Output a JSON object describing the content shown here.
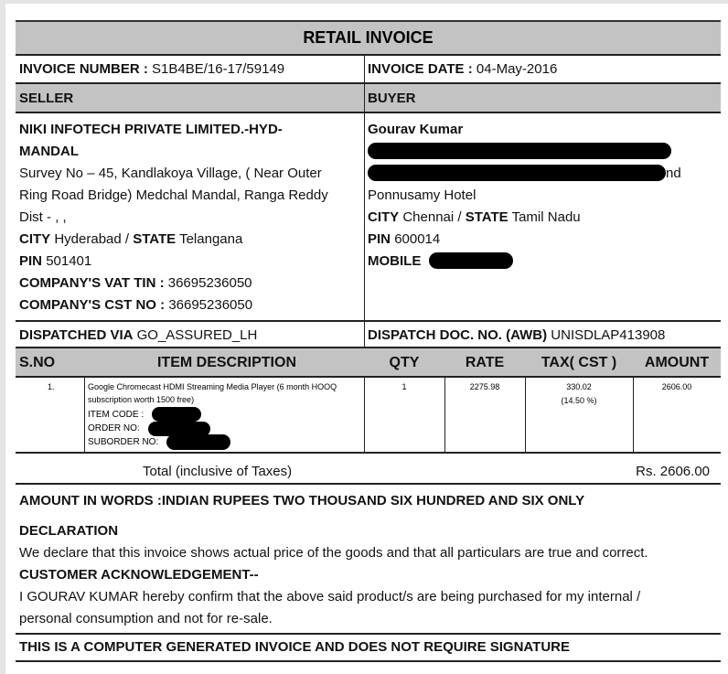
{
  "title": "RETAIL INVOICE",
  "invoice_number_label": "INVOICE NUMBER :",
  "invoice_number": "S1B4BE/16-17/59149",
  "invoice_date_label": "INVOICE DATE :",
  "invoice_date": "04-May-2016",
  "seller_label": "SELLER",
  "buyer_label": "BUYER",
  "seller": {
    "name1": "NIKI INFOTECH PRIVATE LIMITED.-HYD-",
    "name2": "MANDAL",
    "addr1": "Survey No – 45, Kandlakoya Village, ( Near Outer",
    "addr2": "Ring Road Bridge) Medchal Mandal,  Ranga Reddy",
    "addr3": "Dist - , ,",
    "city_label": "CITY",
    "city": "Hyderabad /",
    "state_label": "STATE",
    "state": "Telangana",
    "pin_label": "PIN",
    "pin": "501401",
    "vat_label": "COMPANY'S VAT TIN :",
    "vat": "36695236050",
    "cst_label": "COMPANY'S CST NO :",
    "cst": "36695236050"
  },
  "buyer": {
    "name": "Gourav Kumar",
    "addr_tail": "nd",
    "addr3": "Ponnusamy Hotel",
    "city_label": "CITY",
    "city": "Chennai /",
    "state_label": "STATE",
    "state": "Tamil Nadu",
    "pin_label": "PIN",
    "pin": "600014",
    "mobile_label": "MOBILE"
  },
  "dispatched_label": "DISPATCHED VIA",
  "dispatched": "GO_ASSURED_LH",
  "awb_label": "DISPATCH DOC. NO. (AWB)",
  "awb": "UNISDLAP413908",
  "table": {
    "headers": [
      "S.NO",
      "ITEM DESCRIPTION",
      "QTY",
      "RATE",
      "TAX( CST )",
      "AMOUNT"
    ],
    "row": {
      "sno": "1.",
      "desc1": "Google Chromecast HDMI Streaming Media Player (6 month HOOQ",
      "desc2": "subscription worth 1500 free)",
      "item_code": "ITEM CODE :",
      "order_no": "ORDER NO:",
      "suborder_no": "SUBORDER NO:",
      "qty": "1",
      "rate": "2275.98",
      "tax": "330.02",
      "tax_pct": "(14.50 %)",
      "amount": "2606.00"
    },
    "total_label": "Total (inclusive of Taxes)",
    "total": "Rs. 2606.00"
  },
  "amount_words": "AMOUNT IN WORDS :INDIAN RUPEES TWO THOUSAND SIX HUNDRED AND SIX ONLY",
  "declaration_title": "DECLARATION",
  "declaration": "We declare that this invoice shows actual price of the goods and that all particulars are true and correct.",
  "ack_title": "CUSTOMER ACKNOWLEDGEMENT--",
  "ack1": "I GOURAV KUMAR hereby confirm that the above said product/s are being purchased for my internal /",
  "ack2": "personal consumption and not for re-sale.",
  "footer": "THIS IS A COMPUTER GENERATED INVOICE AND DOES NOT REQUIRE SIGNATURE"
}
